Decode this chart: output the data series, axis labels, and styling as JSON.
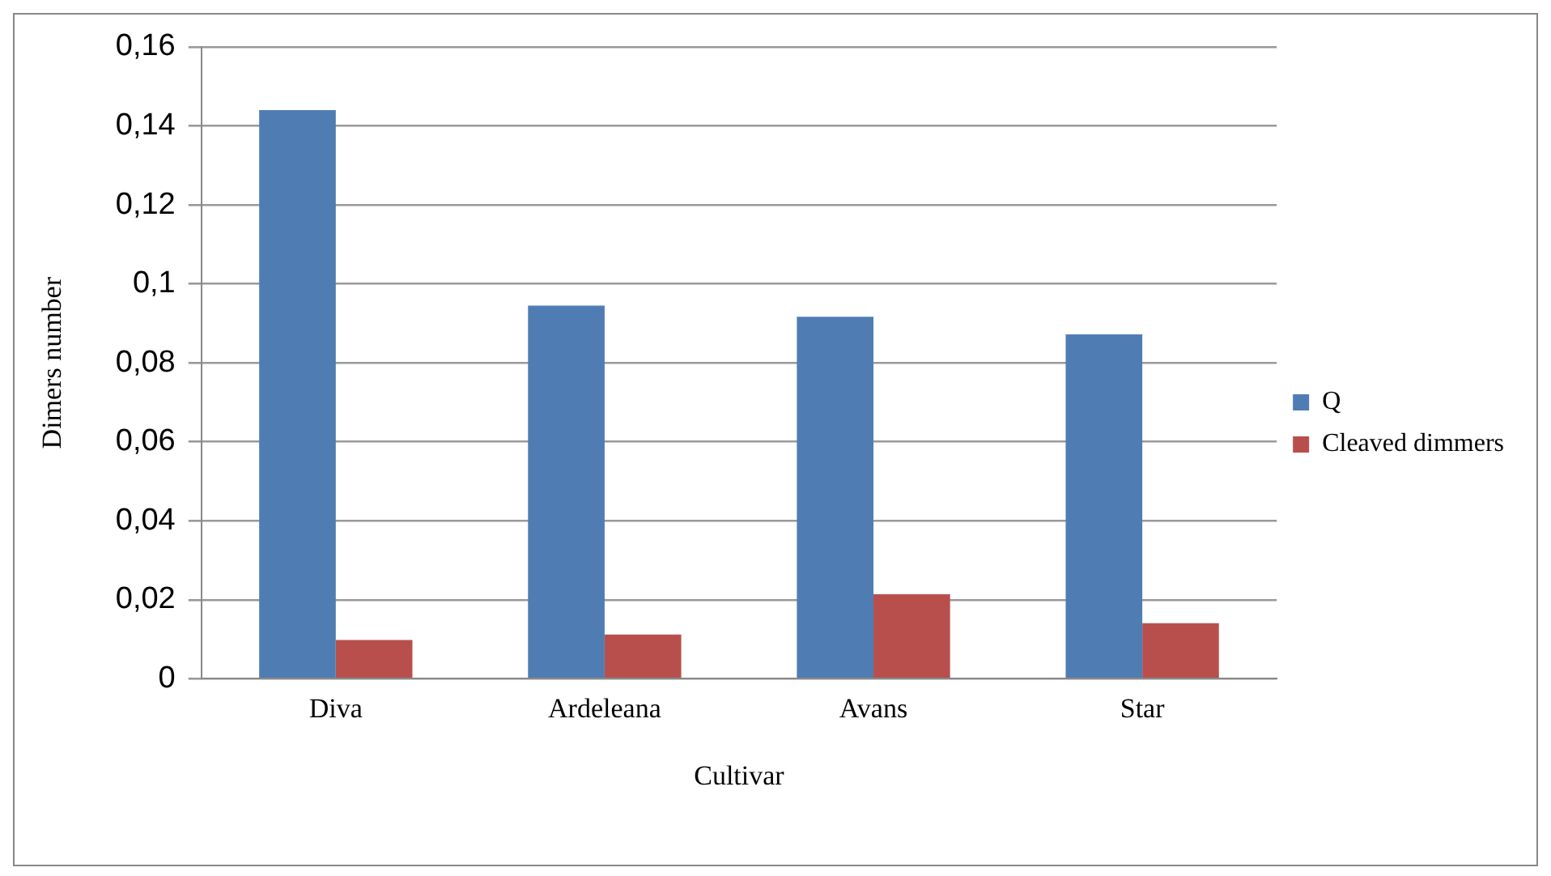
{
  "chart_data": {
    "type": "bar",
    "xlabel": "Cultivar",
    "ylabel": "Dimers number",
    "categories": [
      "Diva",
      "Ardeleana",
      "Avans",
      "Star"
    ],
    "series": [
      {
        "name": "Q",
        "color": "#4f7db3",
        "values": [
          0.144,
          0.0945,
          0.0917,
          0.0872
        ]
      },
      {
        "name": "Cleaved dimmers",
        "color": "#b94f4c",
        "values": [
          0.0098,
          0.0112,
          0.0214,
          0.0141
        ]
      }
    ],
    "ylim": [
      0,
      0.16
    ],
    "yticks": [
      0,
      {
        "value": 0.02,
        "label": "0,02"
      },
      {
        "value": 0.04,
        "label": "0,04"
      },
      {
        "value": 0.06,
        "label": "0,06"
      },
      {
        "value": 0.08,
        "label": "0,08"
      },
      {
        "value": 0.1,
        "label": "0,1"
      },
      {
        "value": 0.12,
        "label": "0,12"
      },
      {
        "value": 0.14,
        "label": "0,14"
      },
      {
        "value": 0.16,
        "label": "0,16"
      }
    ],
    "grid": "y",
    "legend": "right"
  }
}
